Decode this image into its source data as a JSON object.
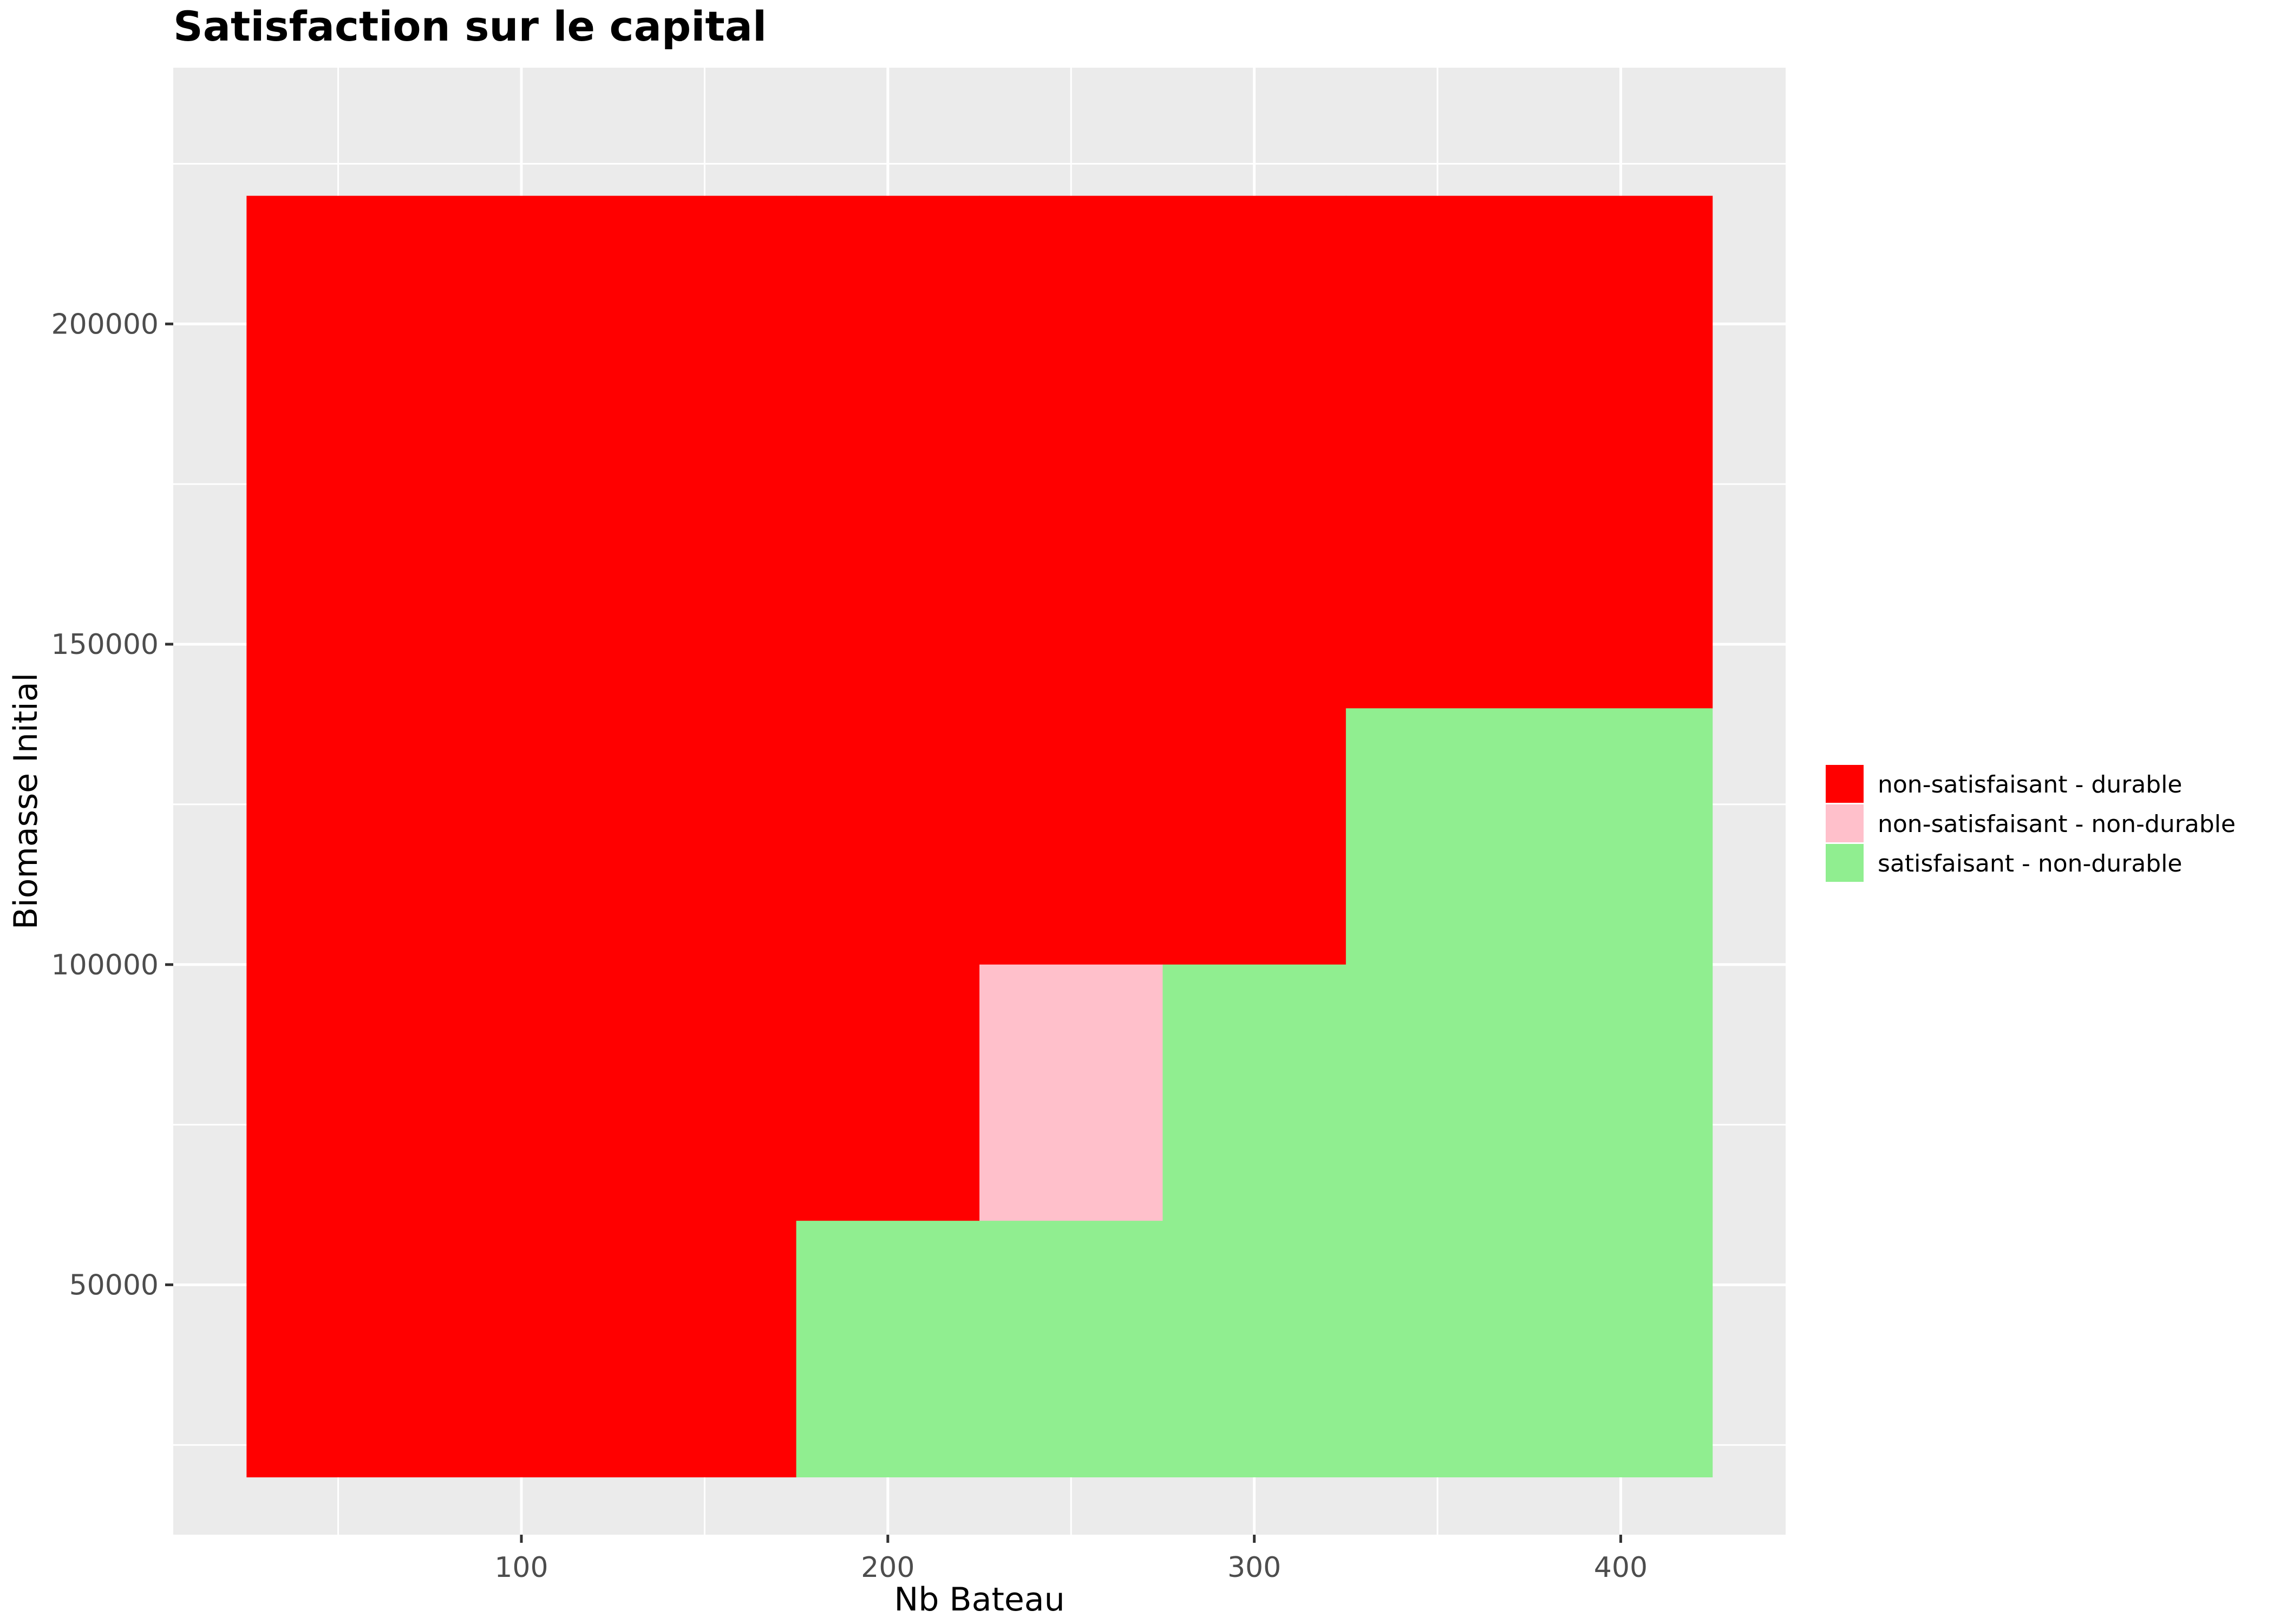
{
  "chart_data": {
    "type": "heatmap",
    "title": "Satisfaction sur le capital",
    "xlabel": "Nb Bateau",
    "ylabel": "Biomasse Initial",
    "xlim": [
      5,
      445
    ],
    "ylim": [
      11000,
      240000
    ],
    "x_ticks": [
      100,
      200,
      300,
      400
    ],
    "x_minor": [
      50,
      150,
      250,
      350
    ],
    "y_ticks": [
      50000,
      100000,
      150000,
      200000
    ],
    "y_minor": [
      25000,
      75000,
      125000,
      175000,
      225000
    ],
    "grid": true,
    "legend_position": "right",
    "categories": [
      {
        "name": "non-satisfaisant - durable",
        "color": "#ff0000"
      },
      {
        "name": "non-satisfaisant - non-durable",
        "color": "#ffc0cb"
      },
      {
        "name": "satisfaisant - non-durable",
        "color": "#90ee90"
      }
    ],
    "tiles": [
      {
        "x": [
          25,
          175
        ],
        "y": [
          20000,
          220000
        ],
        "category": 0
      },
      {
        "x": [
          175,
          225
        ],
        "y": [
          60000,
          220000
        ],
        "category": 0
      },
      {
        "x": [
          225,
          325
        ],
        "y": [
          100000,
          220000
        ],
        "category": 0
      },
      {
        "x": [
          325,
          425
        ],
        "y": [
          140000,
          220000
        ],
        "category": 0
      },
      {
        "x": [
          225,
          275
        ],
        "y": [
          60000,
          100000
        ],
        "category": 1
      },
      {
        "x": [
          175,
          425
        ],
        "y": [
          20000,
          60000
        ],
        "category": 2
      },
      {
        "x": [
          275,
          425
        ],
        "y": [
          60000,
          100000
        ],
        "category": 2
      },
      {
        "x": [
          325,
          425
        ],
        "y": [
          100000,
          140000
        ],
        "category": 2
      }
    ]
  }
}
